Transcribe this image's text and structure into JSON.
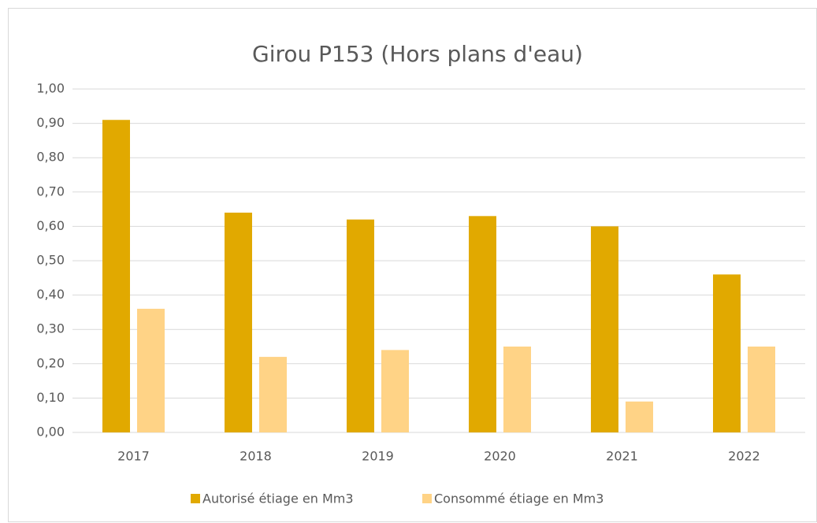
{
  "chart_data": {
    "type": "bar",
    "title": "Girou P153 (Hors plans d'eau)",
    "categories": [
      "2017",
      "2018",
      "2019",
      "2020",
      "2021",
      "2022"
    ],
    "series": [
      {
        "name": "Autorisé étiage en Mm3",
        "color": "#e1a900",
        "values": [
          0.91,
          0.64,
          0.62,
          0.63,
          0.6,
          0.46
        ]
      },
      {
        "name": "Consommé étiage en Mm3",
        "color": "#ffd386",
        "values": [
          0.36,
          0.22,
          0.24,
          0.25,
          0.09,
          0.25
        ]
      }
    ],
    "ylim": [
      0,
      1
    ],
    "yticks": [
      {
        "value": 0,
        "label": "0,00"
      },
      {
        "value": 0.1,
        "label": "0,10"
      },
      {
        "value": 0.2,
        "label": "0,20"
      },
      {
        "value": 0.3,
        "label": "0,30"
      },
      {
        "value": 0.4,
        "label": "0,40"
      },
      {
        "value": 0.5,
        "label": "0,50"
      },
      {
        "value": 0.6,
        "label": "0,60"
      },
      {
        "value": 0.7,
        "label": "0,70"
      },
      {
        "value": 0.8,
        "label": "0,80"
      },
      {
        "value": 0.9,
        "label": "0,90"
      },
      {
        "value": 1,
        "label": "1,00"
      }
    ],
    "grid": true,
    "legend": "bottom"
  }
}
